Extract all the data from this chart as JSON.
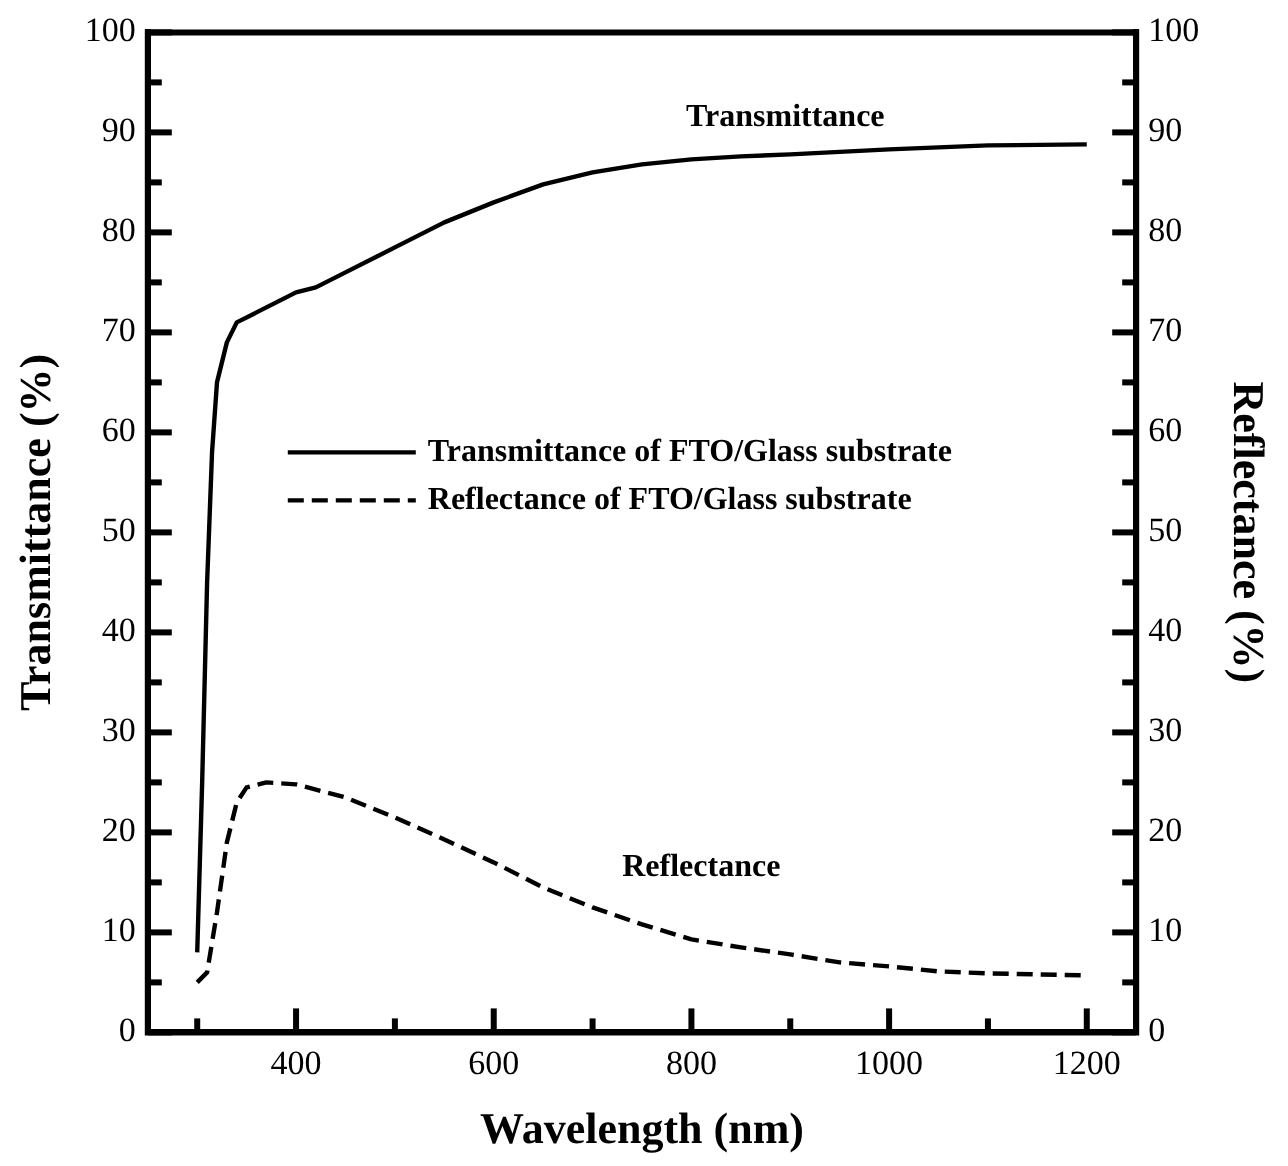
{
  "chart_data": {
    "type": "line",
    "xlabel": "Wavelength (nm)",
    "ylabel": "Transmittance (%)",
    "y2label": "Reflectance (%)",
    "xlim": [
      250,
      1250
    ],
    "xticks": [
      {
        "value": 300,
        "label": null
      },
      400,
      {
        "value": 500,
        "label": null
      },
      600,
      {
        "value": 700,
        "label": null
      },
      800,
      {
        "value": 900,
        "label": null
      },
      1000,
      {
        "value": 1100,
        "label": null
      },
      1200
    ],
    "ylim": [
      0,
      100
    ],
    "yticks": [
      0,
      {
        "value": 5,
        "label": null
      },
      10,
      {
        "value": 15,
        "label": null
      },
      20,
      {
        "value": 25,
        "label": null
      },
      30,
      {
        "value": 35,
        "label": null
      },
      40,
      {
        "value": 45,
        "label": null
      },
      50,
      {
        "value": 55,
        "label": null
      },
      60,
      {
        "value": 65,
        "label": null
      },
      70,
      {
        "value": 75,
        "label": null
      },
      80,
      {
        "value": 85,
        "label": null
      },
      90,
      {
        "value": 95,
        "label": null
      },
      100
    ],
    "y2lim": [
      0,
      100
    ],
    "y2ticks": [
      0,
      {
        "value": 5,
        "label": null
      },
      10,
      {
        "value": 15,
        "label": null
      },
      20,
      {
        "value": 25,
        "label": null
      },
      30,
      {
        "value": 35,
        "label": null
      },
      40,
      {
        "value": 45,
        "label": null
      },
      50,
      {
        "value": 55,
        "label": null
      },
      60,
      {
        "value": 65,
        "label": null
      },
      70,
      {
        "value": 75,
        "label": null
      },
      80,
      {
        "value": 85,
        "label": null
      },
      90,
      {
        "value": 95,
        "label": null
      },
      100
    ],
    "series": [
      {
        "name": "Transmittance of FTO/Glass substrate",
        "color": "#000000",
        "line_style": "solid",
        "x": [
          300,
          305,
          310,
          315,
          320,
          330,
          340,
          360,
          380,
          400,
          420,
          450,
          500,
          550,
          600,
          650,
          700,
          750,
          800,
          850,
          900,
          1000,
          1100,
          1200
        ],
        "values": [
          8,
          25,
          45,
          58,
          65,
          69,
          71,
          72,
          73,
          74,
          74.5,
          76,
          78.5,
          81,
          83,
          84.8,
          86,
          86.8,
          87.3,
          87.6,
          87.8,
          88.3,
          88.7,
          88.8
        ]
      },
      {
        "name": "Reflectance of FTO/Glass substrate",
        "color": "#000000",
        "line_style": "dashed",
        "axis": "y2",
        "x": [
          300,
          310,
          320,
          330,
          340,
          350,
          370,
          400,
          450,
          500,
          550,
          600,
          650,
          700,
          750,
          800,
          850,
          900,
          950,
          1000,
          1050,
          1100,
          1200
        ],
        "values": [
          5,
          6,
          12,
          19,
          23,
          24.5,
          25,
          24.8,
          23.5,
          21.5,
          19.3,
          17,
          14.5,
          12.5,
          10.8,
          9.3,
          8.5,
          7.8,
          7,
          6.6,
          6.1,
          5.9,
          5.7
        ]
      }
    ],
    "annotations": [
      "Transmittance",
      "Reflectance"
    ],
    "legend": "center left",
    "grid": false,
    "marker": "none"
  }
}
